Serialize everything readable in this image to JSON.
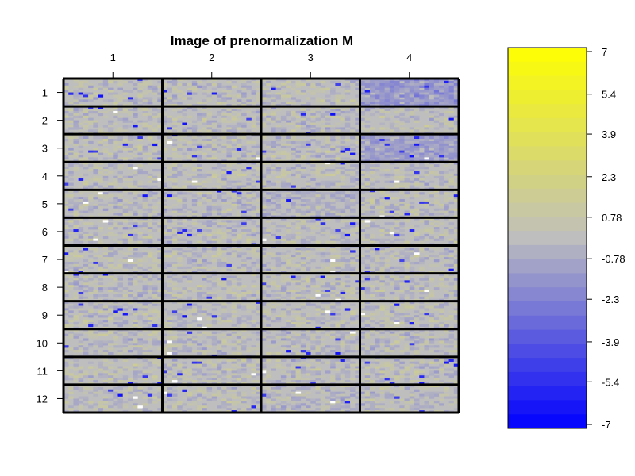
{
  "chart_data": {
    "type": "heatmap",
    "title": "Image of prenormalization M",
    "x_tick_labels": [
      "1",
      "2",
      "3",
      "4"
    ],
    "y_tick_labels": [
      "1",
      "2",
      "3",
      "4",
      "5",
      "6",
      "7",
      "8",
      "9",
      "10",
      "11",
      "12"
    ],
    "grid_columns": 4,
    "grid_rows": 12,
    "subgrid_columns": 20,
    "subgrid_rows": 12,
    "colorscale": {
      "min": -7,
      "max": 7,
      "low_color": "#0000ff",
      "mid_color": "#bebebe",
      "high_color": "#ffff00",
      "tick_labels": [
        "7",
        "5.4",
        "3.9",
        "2.3",
        "0.78",
        "-0.78",
        "-2.3",
        "-3.9",
        "-5.4",
        "-7"
      ],
      "tick_values": [
        7,
        5.4,
        3.9,
        2.3,
        0.78,
        -0.78,
        -2.3,
        -3.9,
        -5.4,
        -7
      ],
      "bands": 27
    },
    "block_bias": {
      "1-4": -1.4,
      "3-4": -1.1,
      "5-3": -0.4,
      "12-3": -0.2
    },
    "legend_placement": "right",
    "grid": true
  }
}
